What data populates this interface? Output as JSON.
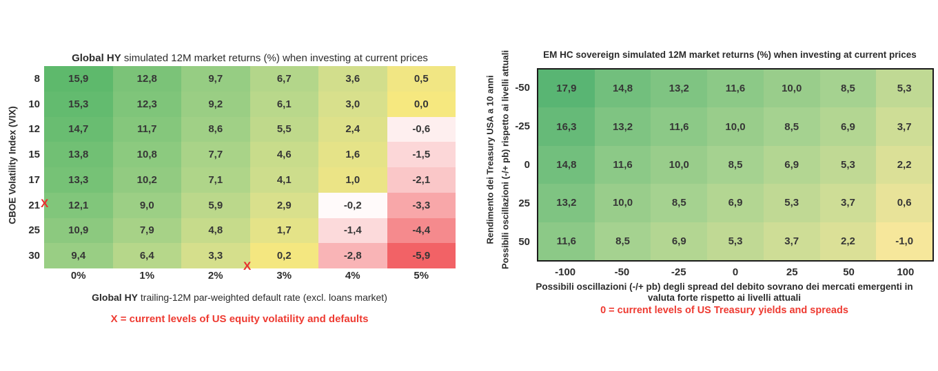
{
  "colors": {
    "note_red": "#ee3a31",
    "marker_red": "#e8302e",
    "right_table_border": "#1b1b1b"
  },
  "left": {
    "title_bold": "Global HY",
    "title_rest": " simulated 12M market returns (%) when investing at current prices",
    "y_axis_label": "CBOE Volatility Index (VIX)",
    "caption_bold": "Global HY",
    "caption_rest": " trailing-12M par-weighted default rate (excl. loans market)",
    "note": "X = current levels of US equity volatility and defaults",
    "marker_glyph": "X"
  },
  "right": {
    "title": "EM HC sovereign simulated 12M market returns (%) when investing at current prices",
    "y_axis_label_line1": "Rendimento dei Treasury USA a 10 anni",
    "y_axis_label_line2": "Possibili oscillazioni (-/+ pb) rispetto ai livelli attuali",
    "caption_line1": "Possibili oscillazioni (-/+ pb) degli spread del debito sovrano  dei mercati emergenti in",
    "caption_line2": "valuta forte rispetto ai livelli attuali",
    "note": "0 = current levels of US Treasury yields and spreads"
  },
  "chart_data": [
    {
      "type": "heatmap",
      "title": "Global HY simulated 12M market returns (%) when investing at current prices",
      "xlabel": "Global HY trailing-12M par-weighted default rate (excl. loans market)",
      "ylabel": "CBOE Volatility Index (VIX)",
      "row_labels": [
        "8",
        "10",
        "12",
        "15",
        "17",
        "21",
        "25",
        "30"
      ],
      "col_labels": [
        "0%",
        "1%",
        "2%",
        "3%",
        "4%",
        "5%"
      ],
      "values": [
        [
          15.9,
          12.8,
          9.7,
          6.7,
          3.6,
          0.5
        ],
        [
          15.3,
          12.3,
          9.2,
          6.1,
          3.0,
          0.0
        ],
        [
          14.7,
          11.7,
          8.6,
          5.5,
          2.4,
          -0.6
        ],
        [
          13.8,
          10.8,
          7.7,
          4.6,
          1.6,
          -1.5
        ],
        [
          13.3,
          10.2,
          7.1,
          4.1,
          1.0,
          -2.1
        ],
        [
          12.1,
          9.0,
          5.9,
          2.9,
          -0.2,
          -3.3
        ],
        [
          10.9,
          7.9,
          4.8,
          1.7,
          -1.4,
          -4.4
        ],
        [
          9.4,
          6.4,
          3.3,
          0.2,
          -2.8,
          -5.9
        ]
      ],
      "decimal_separator": ",",
      "marker": {
        "glyph": "X",
        "at_row_label": "21",
        "between_col_labels": [
          "2%",
          "3%"
        ]
      },
      "color_scale": {
        "positive_stops": [
          [
            16,
            "#5db96c"
          ],
          [
            12,
            "#82c67b"
          ],
          [
            9,
            "#9ccf85"
          ],
          [
            6,
            "#bad88b"
          ],
          [
            3,
            "#d8e08c"
          ],
          [
            1,
            "#ebe486"
          ],
          [
            0,
            "#f6e87f"
          ]
        ],
        "negative": {
          "zero_color": "#ffffff",
          "min_color": "#f25f63",
          "min_value": -6
        }
      }
    },
    {
      "type": "heatmap",
      "title": "EM HC sovereign simulated 12M market returns (%) when investing at current prices",
      "xlabel": "Possibili oscillazioni (-/+ pb) degli spread del debito sovrano dei mercati emergenti in valuta forte rispetto ai livelli attuali",
      "ylabel": "Rendimento dei Treasury USA a 10 anni / Possibili oscillazioni (-/+ pb) rispetto ai livelli attuali",
      "row_labels": [
        "-50",
        "-25",
        "0",
        "25",
        "50"
      ],
      "col_labels": [
        "-100",
        "-50",
        "-25",
        "0",
        "25",
        "50",
        "100"
      ],
      "values": [
        [
          17.9,
          14.8,
          13.2,
          11.6,
          10.0,
          8.5,
          5.3
        ],
        [
          16.3,
          13.2,
          11.6,
          10.0,
          8.5,
          6.9,
          3.7
        ],
        [
          14.8,
          11.6,
          10.0,
          8.5,
          6.9,
          5.3,
          2.2
        ],
        [
          13.2,
          10.0,
          8.5,
          6.9,
          5.3,
          3.7,
          0.6
        ],
        [
          11.6,
          8.5,
          6.9,
          5.3,
          3.7,
          2.2,
          -1.0
        ]
      ],
      "decimal_separator": ",",
      "color_scale": {
        "stops": [
          [
            18,
            "#58b573"
          ],
          [
            8.5,
            "#a5d290"
          ],
          [
            -1,
            "#f6e79b"
          ]
        ]
      }
    }
  ]
}
